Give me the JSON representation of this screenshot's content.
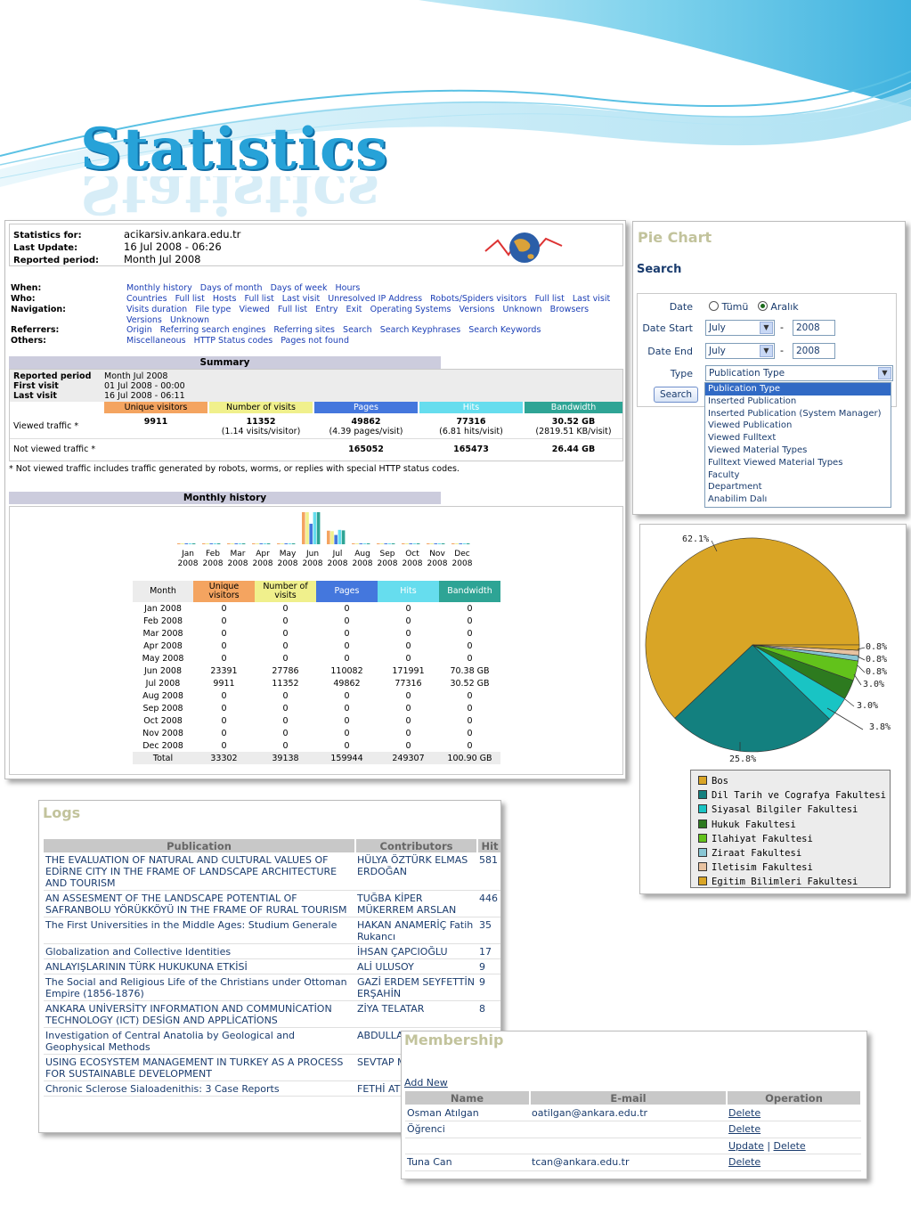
{
  "header": {
    "title": "Statistics"
  },
  "awstats": {
    "info": [
      {
        "label": "Statistics for:",
        "value": "acikarsiv.ankara.edu.tr"
      },
      {
        "label": "Last Update:",
        "value": "16 Jul 2008 - 06:26"
      },
      {
        "label": "Reported period:",
        "value": "Month Jul 2008"
      }
    ],
    "nav": [
      {
        "label": "When:",
        "links": "Monthly history   Days of month   Days of week   Hours"
      },
      {
        "label": "Who:",
        "links": "Countries   Full list   Hosts   Full list   Last visit   Unresolved IP Address   Robots/Spiders visitors   Full list   Last visit"
      },
      {
        "label": "Navigation:",
        "links": "Visits duration   File type   Viewed   Full list   Entry   Exit   Operating Systems   Versions   Unknown   Browsers   Versions   Unknown"
      },
      {
        "label": "Referrers:",
        "links": "Origin   Referring search engines   Referring sites   Search   Search Keyphrases   Search Keywords"
      },
      {
        "label": "Others:",
        "links": "Miscellaneous   HTTP Status codes   Pages not found"
      }
    ],
    "summary": {
      "title": "Summary",
      "rows": [
        {
          "label": "Reported period",
          "value": "Month Jul 2008"
        },
        {
          "label": "First visit",
          "value": "01 Jul 2008 - 00:00"
        },
        {
          "label": "Last visit",
          "value": "16 Jul 2008 - 06:11"
        }
      ],
      "columns": [
        "Unique visitors",
        "Number of visits",
        "Pages",
        "Hits",
        "Bandwidth"
      ],
      "viewed_label": "Viewed traffic *",
      "viewed": [
        "9911",
        "11352",
        "49862",
        "77316",
        "30.52 GB"
      ],
      "viewed_sub": [
        "",
        "(1.14 visits/visitor)",
        "(4.39 pages/visit)",
        "(6.81 hits/visit)",
        "(2819.51 KB/visit)"
      ],
      "notviewed_label": "Not viewed traffic *",
      "notviewed": [
        "",
        "",
        "165052",
        "165473",
        "26.44 GB"
      ],
      "footnote": "* Not viewed traffic includes traffic generated by robots, worms, or replies with special HTTP status codes."
    },
    "monthly": {
      "title": "Monthly history",
      "months": [
        "Jan",
        "Feb",
        "Mar",
        "Apr",
        "May",
        "Jun",
        "Jul",
        "Aug",
        "Sep",
        "Oct",
        "Nov",
        "Dec"
      ],
      "year": "2008",
      "columns": [
        "Month",
        "Unique visitors",
        "Number of visits",
        "Pages",
        "Hits",
        "Bandwidth"
      ],
      "rows": [
        [
          "Jan 2008",
          "0",
          "0",
          "0",
          "0",
          "0"
        ],
        [
          "Feb 2008",
          "0",
          "0",
          "0",
          "0",
          "0"
        ],
        [
          "Mar 2008",
          "0",
          "0",
          "0",
          "0",
          "0"
        ],
        [
          "Apr 2008",
          "0",
          "0",
          "0",
          "0",
          "0"
        ],
        [
          "May 2008",
          "0",
          "0",
          "0",
          "0",
          "0"
        ],
        [
          "Jun 2008",
          "23391",
          "27786",
          "110082",
          "171991",
          "70.38 GB"
        ],
        [
          "Jul 2008",
          "9911",
          "11352",
          "49862",
          "77316",
          "30.52 GB"
        ],
        [
          "Aug 2008",
          "0",
          "0",
          "0",
          "0",
          "0"
        ],
        [
          "Sep 2008",
          "0",
          "0",
          "0",
          "0",
          "0"
        ],
        [
          "Oct 2008",
          "0",
          "0",
          "0",
          "0",
          "0"
        ],
        [
          "Nov 2008",
          "0",
          "0",
          "0",
          "0",
          "0"
        ],
        [
          "Dec 2008",
          "0",
          "0",
          "0",
          "0",
          "0"
        ]
      ],
      "total": [
        "Total",
        "33302",
        "39138",
        "159944",
        "249307",
        "100.90 GB"
      ],
      "bandwidth_gb": [
        0,
        0,
        0,
        0,
        0,
        70.38,
        30.52,
        0,
        0,
        0,
        0,
        0
      ]
    },
    "colors": {
      "visitors": "#f4a460",
      "visits": "#f0f08c",
      "pages": "#4477dd",
      "hits": "#66ddee",
      "bandwidth": "#2ea495"
    }
  },
  "search_panel": {
    "title": "Pie Chart",
    "heading": "Search",
    "date_label": "Date",
    "radio_all": "Tümü",
    "radio_range": "Aralık",
    "date_start_label": "Date Start",
    "date_end_label": "Date End",
    "month_start": "July",
    "year_start": "2008",
    "month_end": "July",
    "year_end": "2008",
    "type_label": "Type",
    "type_value": "Publication Type",
    "search_button": "Search",
    "type_options": [
      "Publication Type",
      "Inserted Publication",
      "Inserted Publication (System Manager)",
      "Viewed Publication",
      "Viewed Fulltext",
      "Viewed Material Types",
      "Fulltext Viewed Material Types",
      "Faculty",
      "Department",
      "Anabilim Dalı"
    ]
  },
  "chart_data": {
    "type": "pie",
    "slice_labels": [
      "62.1%",
      "25.8%",
      "3.8%",
      "3.0%",
      "3.0%",
      "0.8%",
      "0.8%",
      "0.8%"
    ],
    "values": [
      62.1,
      25.8,
      3.8,
      3.0,
      3.0,
      0.8,
      0.8,
      0.8
    ],
    "colors": [
      "#d9a526",
      "#13807f",
      "#19c4c4",
      "#2d7a1f",
      "#62c21b",
      "#88c6d4",
      "#e8c2a0",
      "#d9a526"
    ],
    "legend": [
      {
        "label": "Bos",
        "color": "#d9a526"
      },
      {
        "label": "Dil Tarih ve Cografya Fakultesi",
        "color": "#13807f"
      },
      {
        "label": "Siyasal Bilgiler Fakultesi",
        "color": "#19c4c4"
      },
      {
        "label": "Hukuk Fakultesi",
        "color": "#2d7a1f"
      },
      {
        "label": "Ilahiyat Fakultesi",
        "color": "#62c21b"
      },
      {
        "label": "Ziraat Fakultesi",
        "color": "#88c6d4"
      },
      {
        "label": "Iletisim Fakultesi",
        "color": "#e8c2a0"
      },
      {
        "label": "Egitim Bilimleri Fakultesi",
        "color": "#d9a526"
      }
    ]
  },
  "logs": {
    "title": "Logs",
    "columns": [
      "Publication",
      "Contributors",
      "Hit"
    ],
    "rows": [
      [
        "THE EVALUATION OF NATURAL AND CULTURAL VALUES OF EDİRNE CITY IN THE FRAME OF LANDSCAPE ARCHITECTURE AND TOURISM",
        "HÜLYA ÖZTÜRK ELMAS ERDOĞAN",
        "581"
      ],
      [
        "AN ASSESMENT OF THE LANDSCAPE POTENTIAL OF SAFRANBOLU YÖRÜKKÖYÜ IN THE FRAME OF RURAL TOURISM",
        "TUĞBA KİPER MÜKERREM ARSLAN",
        "446"
      ],
      [
        "The First Universities in the Middle Ages: Studium Generale",
        "HAKAN ANAMERİÇ Fatih Rukancı",
        "35"
      ],
      [
        "Globalization and Collective Identities",
        "İHSAN ÇAPCIOĞLU",
        "17"
      ],
      [
        "ANLAYIŞLARININ TÜRK HUKUKUNA ETKİSİ",
        "ALİ ULUSOY",
        "9"
      ],
      [
        "The Social and Religious Life of the Christians under Ottoman Empire (1856-1876)",
        "GAZİ ERDEM SEYFETTİN ERŞAHİN",
        "9"
      ],
      [
        "ANKARA UNİVERSİTY INFORMATION AND COMMUNİCATİON TECHNOLOGY (ICT) DESİGN AND APPLİCATİONS",
        "ZİYA TELATAR",
        "8"
      ],
      [
        "Investigation of Central Anatolia by Geological and Geophysical Methods",
        "ABDULLA",
        ""
      ],
      [
        "USING ECOSYSTEM MANAGEMENT IN TURKEY AS A PROCESS FOR SUSTAINABLE DEVELOPMENT",
        "SEVTAP MÜKERR",
        ""
      ],
      [
        "Chronic Sclerose Sialoadenithis: 3 Case Reports",
        "FETHİ AT",
        ""
      ]
    ]
  },
  "membership": {
    "title": "Membership",
    "add_new": "Add New",
    "columns": [
      "Name",
      "E-mail",
      "Operation"
    ],
    "rows": [
      {
        "name": "Osman Atılgan",
        "email": "oatilgan@ankara.edu.tr",
        "ops": [
          "Delete"
        ]
      },
      {
        "name": "Öğrenci",
        "email": "",
        "ops": [
          "Delete"
        ]
      },
      {
        "name": "",
        "email": "",
        "ops": [
          "Update",
          "Delete"
        ]
      },
      {
        "name": "Tuna Can",
        "email": "tcan@ankara.edu.tr",
        "ops": [
          "Delete"
        ]
      }
    ]
  }
}
